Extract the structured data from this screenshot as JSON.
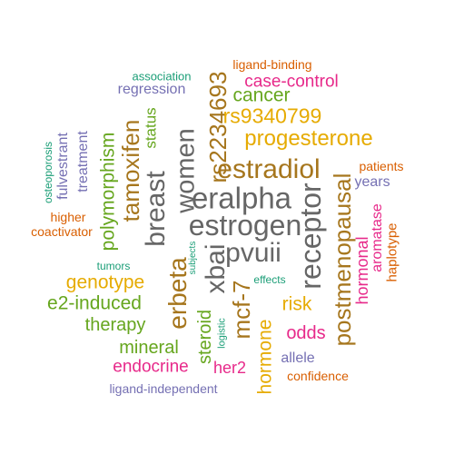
{
  "palette": {
    "teal": "#1b9e77",
    "orange": "#d95f02",
    "purple": "#7570b3",
    "magenta": "#e7298a",
    "green": "#66a61e",
    "gold": "#e6ab02",
    "brown": "#a6761d",
    "gray": "#666666"
  },
  "words": [
    {
      "text": "estrogen",
      "color": "gray"
    },
    {
      "text": "eralpha",
      "color": "gray"
    },
    {
      "text": "receptor",
      "color": "gray"
    },
    {
      "text": "breast",
      "color": "gray"
    },
    {
      "text": "women",
      "color": "gray"
    },
    {
      "text": "pvuii",
      "color": "gray"
    },
    {
      "text": "xbai",
      "color": "gray"
    },
    {
      "text": "estradiol",
      "color": "brown"
    },
    {
      "text": "postmenopausal",
      "color": "brown"
    },
    {
      "text": "erbeta",
      "color": "brown"
    },
    {
      "text": "mcf-7",
      "color": "brown"
    },
    {
      "text": "tamoxifen",
      "color": "brown"
    },
    {
      "text": "rs2234693",
      "color": "brown"
    },
    {
      "text": "progesterone",
      "color": "gold"
    },
    {
      "text": "rs9340799",
      "color": "gold"
    },
    {
      "text": "genotype",
      "color": "gold"
    },
    {
      "text": "risk",
      "color": "gold"
    },
    {
      "text": "hormone",
      "color": "gold"
    },
    {
      "text": "haplotype",
      "color": "orange"
    },
    {
      "text": "cancer",
      "color": "green"
    },
    {
      "text": "polymorphism",
      "color": "green"
    },
    {
      "text": "status",
      "color": "green"
    },
    {
      "text": "e2-induced",
      "color": "green"
    },
    {
      "text": "therapy",
      "color": "green"
    },
    {
      "text": "mineral",
      "color": "green"
    },
    {
      "text": "steroid",
      "color": "green"
    },
    {
      "text": "case-control",
      "color": "magenta"
    },
    {
      "text": "hormonal",
      "color": "magenta"
    },
    {
      "text": "aromatase",
      "color": "magenta"
    },
    {
      "text": "odds",
      "color": "magenta"
    },
    {
      "text": "endocrine",
      "color": "magenta"
    },
    {
      "text": "her2",
      "color": "magenta"
    },
    {
      "text": "ligand-binding",
      "color": "orange"
    },
    {
      "text": "patients",
      "color": "orange"
    },
    {
      "text": "higher",
      "color": "orange"
    },
    {
      "text": "coactivator",
      "color": "orange"
    },
    {
      "text": "confidence",
      "color": "orange"
    },
    {
      "text": "regression",
      "color": "purple"
    },
    {
      "text": "years",
      "color": "purple"
    },
    {
      "text": "fulvestrant",
      "color": "purple"
    },
    {
      "text": "treatment",
      "color": "purple"
    },
    {
      "text": "allele",
      "color": "purple"
    },
    {
      "text": "ligand-independent",
      "color": "purple"
    },
    {
      "text": "association",
      "color": "teal"
    },
    {
      "text": "osteoporosis",
      "color": "teal"
    },
    {
      "text": "tumors",
      "color": "teal"
    },
    {
      "text": "subjects",
      "color": "teal"
    },
    {
      "text": "logistic",
      "color": "teal"
    },
    {
      "text": "effects",
      "color": "teal"
    }
  ]
}
